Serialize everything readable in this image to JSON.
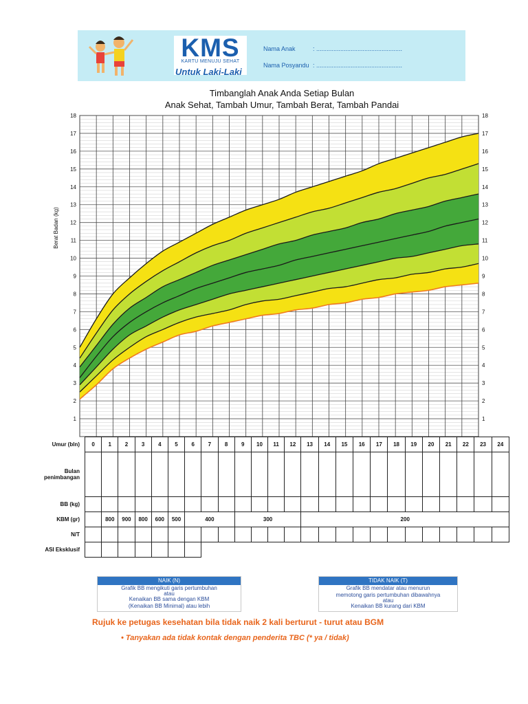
{
  "header": {
    "logo_text": "KMS",
    "logo_subtitle": "KARTU MENUJU SEHAT",
    "logo_for": "Untuk Laki-Laki",
    "field1_label": "Nama Anak",
    "field1_value": ": ..................................................",
    "field2_label": "Nama Posyandu",
    "field2_value": ": ..................................................",
    "illustration": "children-icon"
  },
  "title_line1": "Timbanglah Anak Anda Setiap Bulan",
  "title_line2": "Anak Sehat, Tambah Umur, Tambah Berat, Tambah Pandai",
  "chart_data": {
    "type": "area",
    "title": "",
    "xlabel": "",
    "ylabel": "Berat Badan (kg)",
    "xlim": [
      0,
      24
    ],
    "ylim": [
      0,
      18
    ],
    "y_ticks": [
      1,
      2,
      3,
      4,
      5,
      6,
      7,
      8,
      9,
      10,
      11,
      12,
      13,
      14,
      15,
      16,
      17,
      18
    ],
    "grid": true,
    "x": [
      0,
      1,
      2,
      3,
      4,
      5,
      6,
      7,
      8,
      9,
      10,
      11,
      12,
      13,
      14,
      15,
      16,
      17,
      18,
      19,
      20,
      21,
      22,
      23,
      24
    ],
    "series": [
      {
        "values": [
          2.1,
          2.9,
          3.8,
          4.4,
          4.9,
          5.3,
          5.7,
          5.9,
          6.2,
          6.4,
          6.6,
          6.8,
          6.9,
          7.1,
          7.2,
          7.4,
          7.5,
          7.7,
          7.8,
          8.0,
          8.1,
          8.2,
          8.4,
          8.5,
          8.6
        ]
      },
      {
        "values": [
          2.5,
          3.4,
          4.3,
          5.0,
          5.6,
          6.0,
          6.4,
          6.7,
          6.9,
          7.1,
          7.4,
          7.6,
          7.7,
          7.9,
          8.1,
          8.3,
          8.4,
          8.6,
          8.8,
          8.9,
          9.1,
          9.2,
          9.4,
          9.5,
          9.7
        ]
      },
      {
        "values": [
          2.9,
          3.9,
          4.9,
          5.7,
          6.2,
          6.7,
          7.1,
          7.4,
          7.7,
          8.0,
          8.2,
          8.4,
          8.6,
          8.8,
          9.0,
          9.2,
          9.4,
          9.6,
          9.8,
          10.0,
          10.1,
          10.3,
          10.5,
          10.7,
          10.8
        ]
      },
      {
        "values": [
          3.3,
          4.5,
          5.6,
          6.4,
          7.0,
          7.5,
          7.9,
          8.3,
          8.6,
          8.9,
          9.2,
          9.4,
          9.6,
          9.9,
          10.1,
          10.3,
          10.5,
          10.7,
          10.9,
          11.1,
          11.3,
          11.5,
          11.8,
          12.0,
          12.2
        ]
      },
      {
        "values": [
          3.9,
          5.1,
          6.3,
          7.2,
          7.8,
          8.4,
          8.8,
          9.2,
          9.6,
          9.9,
          10.2,
          10.5,
          10.8,
          11.0,
          11.3,
          11.5,
          11.7,
          12.0,
          12.2,
          12.5,
          12.7,
          12.9,
          13.2,
          13.4,
          13.6
        ]
      },
      {
        "values": [
          4.4,
          5.8,
          7.1,
          8.0,
          8.7,
          9.3,
          9.8,
          10.3,
          10.7,
          11.0,
          11.4,
          11.7,
          12.0,
          12.3,
          12.6,
          12.8,
          13.1,
          13.4,
          13.7,
          13.9,
          14.2,
          14.5,
          14.7,
          15.0,
          15.3
        ]
      },
      {
        "values": [
          5.0,
          6.6,
          8.0,
          8.9,
          9.7,
          10.4,
          10.9,
          11.4,
          11.9,
          12.3,
          12.7,
          13.0,
          13.3,
          13.7,
          14.0,
          14.3,
          14.6,
          14.9,
          15.3,
          15.6,
          15.9,
          16.2,
          16.5,
          16.8,
          17.0
        ]
      }
    ],
    "band_colors": {
      "outer": "#f5e113",
      "inner_light": "#c2df34",
      "inner": "#44a83a",
      "bottom_line": "#f07a1f"
    }
  },
  "table": {
    "row_labels": [
      "Umur (bln)",
      "Bulan\npenimbangan",
      "BB (kg)",
      "KBM (gr)",
      "N/T",
      "ASI Eksklusif"
    ],
    "months": [
      "0",
      "1",
      "2",
      "3",
      "4",
      "5",
      "6",
      "7",
      "8",
      "9",
      "10",
      "11",
      "12",
      "13",
      "14",
      "15",
      "16",
      "17",
      "18",
      "19",
      "20",
      "21",
      "22",
      "23",
      "24"
    ],
    "kbm": [
      {
        "value": "",
        "span": 1
      },
      {
        "value": "800",
        "span": 1
      },
      {
        "value": "900",
        "span": 1
      },
      {
        "value": "800",
        "span": 1
      },
      {
        "value": "600",
        "span": 1
      },
      {
        "value": "500",
        "span": 1
      },
      {
        "value": "400",
        "span": 3
      },
      {
        "value": "300",
        "span": 4
      },
      {
        "value": "200",
        "span": 13
      }
    ]
  },
  "legend_boxes": {
    "naik": {
      "header": "NAIK (N)",
      "lines": [
        "Grafik BB mengikuti garis pertumbuhan",
        "atau",
        "Kenaikan BB sama dengan KBM",
        "(Kenaikan BB Minimal) atau lebih"
      ]
    },
    "tidak_naik": {
      "header": "TIDAK NAIK (T)",
      "lines": [
        "Grafik BB mendatar atau menurun",
        "memotong garis pertumbuhan dibawahnya",
        "atau",
        "Kenaikan BB kurang dari KBM"
      ]
    }
  },
  "footer": {
    "refer": "Rujuk ke petugas kesehatan bila tidak naik 2 kali berturut - turut atau BGM",
    "ask": "•  Tanyakan ada tidak kontak dengan penderita TBC (* ya / tidak)"
  }
}
